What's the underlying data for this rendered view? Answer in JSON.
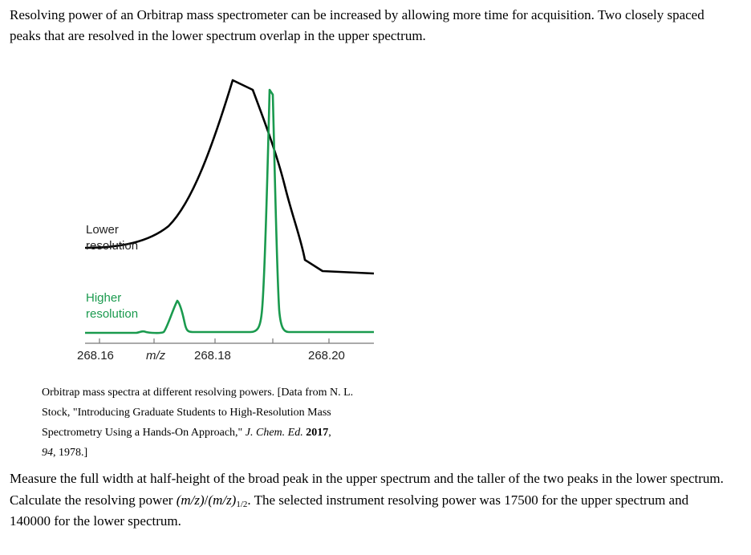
{
  "intro": {
    "text": "Resolving power of an Orbitrap mass spectrometer can be increased by allowing more time for acquisition. Two closely spaced peaks that are resolved in the lower spectrum overlap in the upper spectrum."
  },
  "figure": {
    "label_lower_1": "Lower",
    "label_lower_2": "resolution",
    "label_higher_1": "Higher",
    "label_higher_2": "resolution",
    "tick_labels": [
      "268.16",
      "268.18",
      "268.20"
    ],
    "axis_unit": "m/z",
    "colors": {
      "upper_trace": "#000000",
      "lower_trace": "#1a9a4e",
      "lower_label": "#1a9a4e"
    }
  },
  "caption": {
    "line1": "Orbitrap mass spectra at different resolving powers. [Data from N. L.",
    "line2": "Stock, \"Introducing Graduate Students to High-Resolution Mass",
    "line3_pre": "Spectrometry Using a Hands-On Approach,\" ",
    "journal": "J. Chem. Ed.",
    "year": "2017",
    "volume": "94",
    "page_suffix": ", 1978.]"
  },
  "question": {
    "part1": "Measure the full width at half-height of the broad peak in the upper spectrum and the taller of the two peaks in the lower spectrum. Calculate the resolving power ",
    "formula_a": "(m/z)",
    "formula_slash": "/",
    "formula_b": "(m/z)",
    "formula_sub": "1/2",
    "part2": ". The selected instrument resolving power was 17500 for the upper spectrum and 140000 for the lower spectrum."
  }
}
